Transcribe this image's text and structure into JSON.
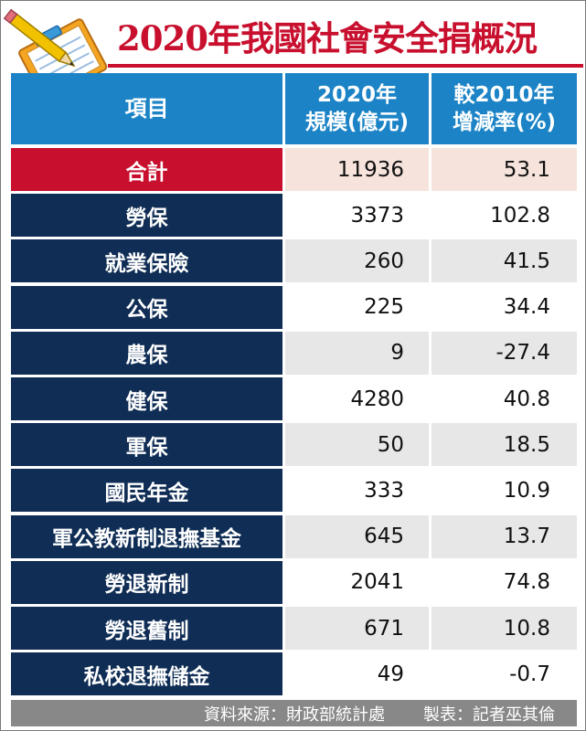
{
  "title": "2020年我國社會安全捐概況",
  "headers": {
    "item": "項目",
    "scale_line1": "2020年",
    "scale_line2": "規模(億元)",
    "change_line1": "較2010年",
    "change_line2": "增減率(%)"
  },
  "colors": {
    "title_red": "#c8102e",
    "header_blue": "#1c84c6",
    "row_navy": "#0f2d55",
    "total_red": "#c8102e",
    "total_tint": "#f5e3dc",
    "footer_gray": "#888888"
  },
  "icons": [
    "pencil-notepad-icon"
  ],
  "chart_data": {
    "type": "table",
    "title": "2020年我國社會安全捐概況",
    "columns": [
      "項目",
      "2020年 規模(億元)",
      "較2010年 增減率(%)"
    ],
    "rows": [
      {
        "item": "合計",
        "scale": "11936",
        "change": "53.1"
      },
      {
        "item": "勞保",
        "scale": "3373",
        "change": "102.8"
      },
      {
        "item": "就業保險",
        "scale": "260",
        "change": "41.5"
      },
      {
        "item": "公保",
        "scale": "225",
        "change": "34.4"
      },
      {
        "item": "農保",
        "scale": "9",
        "change": "-27.4"
      },
      {
        "item": "健保",
        "scale": "4280",
        "change": "40.8"
      },
      {
        "item": "軍保",
        "scale": "50",
        "change": "18.5"
      },
      {
        "item": "國民年金",
        "scale": "333",
        "change": "10.9"
      },
      {
        "item": "軍公教新制退撫基金",
        "scale": "645",
        "change": "13.7"
      },
      {
        "item": "勞退新制",
        "scale": "2041",
        "change": "74.8"
      },
      {
        "item": "勞退舊制",
        "scale": "671",
        "change": "10.8"
      },
      {
        "item": "私校退撫儲金",
        "scale": "49",
        "change": "-0.7"
      }
    ]
  },
  "footer": {
    "source": "資料來源：財政部統計處",
    "credit": "製表：記者巫其倫"
  }
}
